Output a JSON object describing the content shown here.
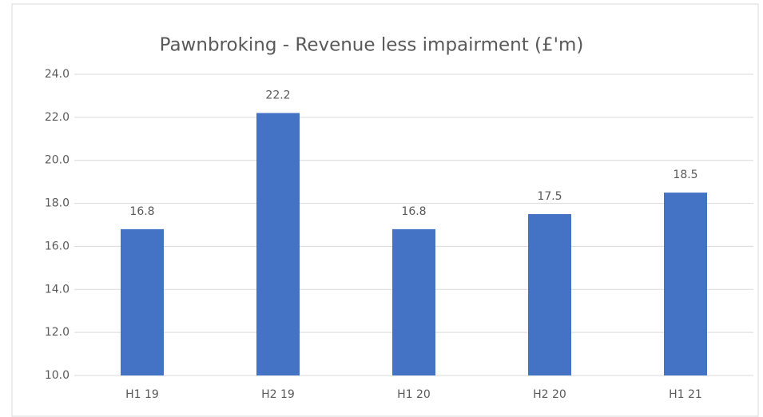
{
  "chart_data": {
    "type": "bar",
    "title": "Pawnbroking - Revenue less impairment (£'m)",
    "categories": [
      "H1 19",
      "H2 19",
      "H1 20",
      "H2 20",
      "H1 21"
    ],
    "values": [
      16.8,
      22.2,
      16.8,
      17.5,
      18.5
    ],
    "color": "#4472c4",
    "ylim": [
      10,
      24
    ],
    "yticks": [
      {
        "value": 10,
        "label": "10.0"
      },
      {
        "value": 12,
        "label": "12.0"
      },
      {
        "value": 14,
        "label": "14.0"
      },
      {
        "value": 16,
        "label": "16.0"
      },
      {
        "value": 18,
        "label": "18.0"
      },
      {
        "value": 20,
        "label": "20.0"
      },
      {
        "value": 22,
        "label": "22.0"
      },
      {
        "value": 24,
        "label": "24.0"
      }
    ],
    "grid": true
  }
}
